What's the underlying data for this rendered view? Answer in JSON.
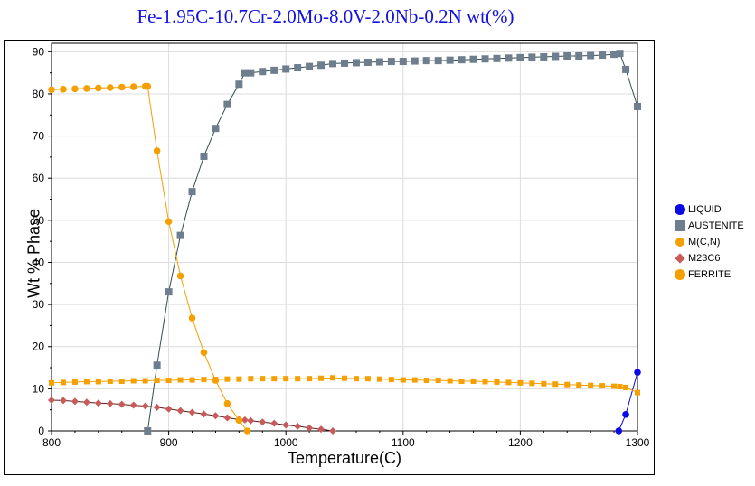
{
  "chart_data": {
    "type": "line",
    "title": "Fe-1.95C-10.7Cr-2.0Mo-8.0V-2.0Nb-0.2N wt(%)",
    "xlabel": "Temperature(C)",
    "ylabel": "Wt % Phase",
    "xlim": [
      800,
      1300
    ],
    "ylim": [
      0,
      92
    ],
    "xticks": [
      800,
      900,
      1000,
      1100,
      1200,
      1300
    ],
    "yticks": [
      0,
      10,
      20,
      30,
      40,
      50,
      60,
      70,
      80,
      90
    ],
    "grid": true,
    "legend_position": "right",
    "series": [
      {
        "name": "LIQUID",
        "color": "#0a0ae6",
        "line_color": "#0a0ae6",
        "marker": "circle",
        "x": [
          1284,
          1290,
          1300
        ],
        "y": [
          0,
          3.9,
          13.9
        ]
      },
      {
        "name": "AUSTENITE",
        "color": "#6e7e8e",
        "line_color": "#2f4f4f",
        "marker": "square",
        "x": [
          882,
          890,
          900,
          910,
          920,
          930,
          940,
          950,
          960,
          965,
          970,
          980,
          990,
          1000,
          1010,
          1020,
          1030,
          1040,
          1050,
          1060,
          1070,
          1080,
          1090,
          1100,
          1110,
          1120,
          1130,
          1140,
          1150,
          1160,
          1170,
          1180,
          1190,
          1200,
          1210,
          1220,
          1230,
          1240,
          1250,
          1260,
          1270,
          1280,
          1285,
          1290,
          1300
        ],
        "y": [
          0,
          15.6,
          33,
          46.4,
          56.8,
          65.2,
          71.8,
          77.5,
          82.3,
          85,
          85,
          85.3,
          85.6,
          85.9,
          86.2,
          86.5,
          86.8,
          87.2,
          87.3,
          87.4,
          87.5,
          87.6,
          87.7,
          87.7,
          87.8,
          87.9,
          87.9,
          88,
          88.1,
          88.2,
          88.3,
          88.4,
          88.5,
          88.6,
          88.7,
          88.8,
          88.9,
          89,
          89,
          89.1,
          89.2,
          89.4,
          89.6,
          85.8,
          77
        ]
      },
      {
        "name": "M(C,N)",
        "color": "#f5a000",
        "line_color": "#f5a000",
        "marker": "square-small",
        "x": [
          800,
          810,
          820,
          830,
          840,
          850,
          860,
          870,
          880,
          890,
          900,
          910,
          920,
          930,
          940,
          950,
          960,
          970,
          980,
          990,
          1000,
          1010,
          1020,
          1030,
          1040,
          1050,
          1060,
          1070,
          1080,
          1090,
          1100,
          1110,
          1120,
          1130,
          1140,
          1150,
          1160,
          1170,
          1180,
          1190,
          1200,
          1210,
          1220,
          1230,
          1240,
          1250,
          1260,
          1270,
          1280,
          1285,
          1290,
          1300
        ],
        "y": [
          11.4,
          11.5,
          11.6,
          11.7,
          11.7,
          11.8,
          11.8,
          11.9,
          11.9,
          12,
          12,
          12.1,
          12.1,
          12.2,
          12.2,
          12.3,
          12.3,
          12.4,
          12.4,
          12.4,
          12.4,
          12.4,
          12.4,
          12.5,
          12.6,
          12.5,
          12.4,
          12.4,
          12.3,
          12.2,
          12.1,
          12.1,
          12,
          12,
          11.9,
          11.8,
          11.8,
          11.7,
          11.6,
          11.5,
          11.4,
          11.3,
          11.2,
          11.1,
          11,
          10.9,
          10.8,
          10.7,
          10.6,
          10.5,
          10.3,
          9.1
        ]
      },
      {
        "name": "M23C6",
        "color": "#c85a5a",
        "line_color": "#5a1a1a",
        "marker": "diamond",
        "x": [
          800,
          810,
          820,
          830,
          840,
          850,
          860,
          870,
          880,
          890,
          900,
          910,
          920,
          930,
          940,
          950,
          960,
          965,
          970,
          980,
          990,
          1000,
          1010,
          1020,
          1030,
          1040
        ],
        "y": [
          7.3,
          7.2,
          7,
          6.8,
          6.6,
          6.5,
          6.3,
          6.1,
          5.9,
          5.6,
          5.2,
          4.8,
          4.4,
          4,
          3.6,
          3.1,
          2.7,
          2.6,
          2.4,
          2.1,
          1.8,
          1.4,
          1.1,
          0.7,
          0.4,
          0
        ]
      },
      {
        "name": "FERRITE",
        "color": "#f5a000",
        "line_color": "#f5a000",
        "marker": "circle",
        "x": [
          800,
          810,
          820,
          830,
          840,
          850,
          860,
          870,
          880,
          882,
          890,
          900,
          910,
          920,
          930,
          940,
          950,
          960,
          967
        ],
        "y": [
          81,
          81.1,
          81.2,
          81.3,
          81.4,
          81.5,
          81.6,
          81.7,
          81.8,
          81.8,
          66.5,
          49.7,
          36.8,
          26.8,
          18.6,
          12,
          6.5,
          2.5,
          0
        ]
      }
    ]
  }
}
